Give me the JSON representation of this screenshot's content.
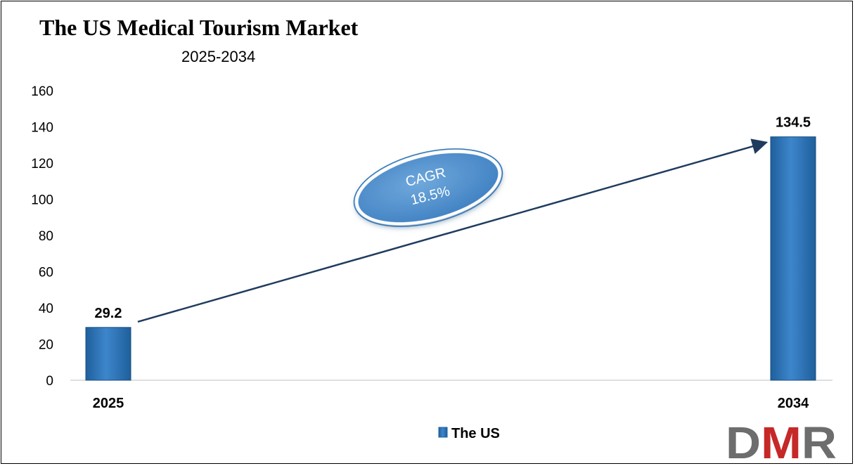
{
  "chart_data": {
    "type": "bar",
    "title": "The US Medical Tourism Market",
    "subtitle": "2025-2034",
    "categories": [
      "2025",
      "2034"
    ],
    "series": [
      {
        "name": "The US",
        "values": [
          29.2,
          134.5
        ],
        "color": "#2E75B6"
      }
    ],
    "data_labels": [
      "29.2",
      "134.5"
    ],
    "ylim": [
      0,
      160
    ],
    "yticks": [
      0,
      20,
      40,
      60,
      80,
      100,
      120,
      140,
      160
    ],
    "grid": false,
    "legend": {
      "position": "bottom",
      "entries": [
        "The US"
      ]
    },
    "annotation": {
      "lines": [
        "CAGR",
        "18.5%"
      ],
      "arrow": "from 2025 bar to 2034 bar"
    }
  },
  "logo": {
    "text": "DMR",
    "colors": {
      "D": "#6d6d6d",
      "M": "#c62828",
      "R": "#6d6d6d"
    }
  }
}
